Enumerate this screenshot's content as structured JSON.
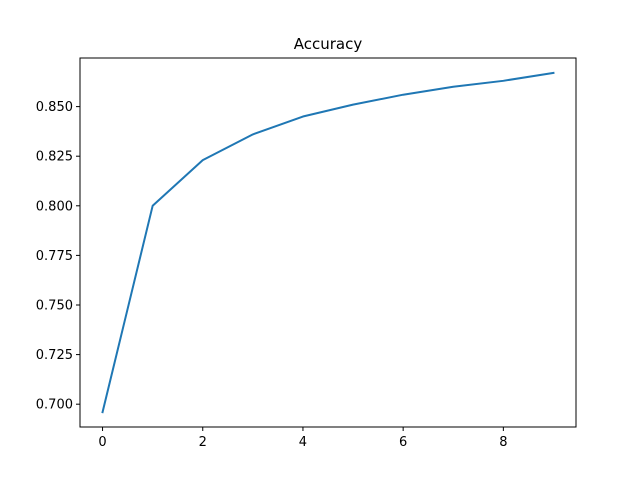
{
  "chart_data": {
    "type": "line",
    "title": "Accuracy",
    "xlabel": "",
    "ylabel": "",
    "x": [
      0,
      1,
      2,
      3,
      4,
      5,
      6,
      7,
      8,
      9
    ],
    "series": [
      {
        "values": [
          0.696,
          0.8,
          0.823,
          0.836,
          0.845,
          0.851,
          0.856,
          0.86,
          0.863,
          0.867
        ],
        "color": "#1f77b4"
      }
    ],
    "xlim": [
      -0.45,
      9.45
    ],
    "ylim": [
      0.6885,
      0.8745
    ],
    "xticks": [
      0,
      2,
      4,
      6,
      8
    ],
    "xtick_labels": [
      "0",
      "2",
      "4",
      "6",
      "8"
    ],
    "yticks": [
      0.7,
      0.725,
      0.75,
      0.775,
      0.8,
      0.825,
      0.85
    ],
    "ytick_labels": [
      "0.700",
      "0.725",
      "0.750",
      "0.775",
      "0.800",
      "0.825",
      "0.850"
    ],
    "grid": false,
    "legend": "none"
  }
}
